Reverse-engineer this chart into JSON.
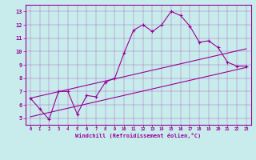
{
  "line1_x": [
    0,
    1,
    2,
    3,
    4,
    5,
    6,
    7,
    8,
    9,
    10,
    11,
    12,
    13,
    14,
    15,
    16,
    17,
    18,
    19,
    20,
    21,
    22,
    23
  ],
  "line1_y": [
    6.5,
    5.7,
    4.9,
    7.0,
    7.0,
    5.3,
    6.7,
    6.6,
    7.7,
    8.0,
    9.9,
    11.6,
    12.0,
    11.5,
    12.0,
    13.0,
    12.7,
    11.9,
    10.7,
    10.8,
    10.3,
    9.2,
    8.9,
    8.9
  ],
  "line2_x": [
    0,
    23
  ],
  "line2_y": [
    6.5,
    10.2
  ],
  "line3_x": [
    0,
    23
  ],
  "line3_y": [
    5.1,
    8.8
  ],
  "color": "#990099",
  "bg_color": "#c8ecec",
  "xlabel": "Windchill (Refroidissement éolien,°C)",
  "xlim": [
    -0.5,
    23.5
  ],
  "ylim": [
    4.5,
    13.5
  ],
  "yticks": [
    5,
    6,
    7,
    8,
    9,
    10,
    11,
    12,
    13
  ],
  "xticks": [
    0,
    1,
    2,
    3,
    4,
    5,
    6,
    7,
    8,
    9,
    10,
    11,
    12,
    13,
    14,
    15,
    16,
    17,
    18,
    19,
    20,
    21,
    22,
    23
  ]
}
